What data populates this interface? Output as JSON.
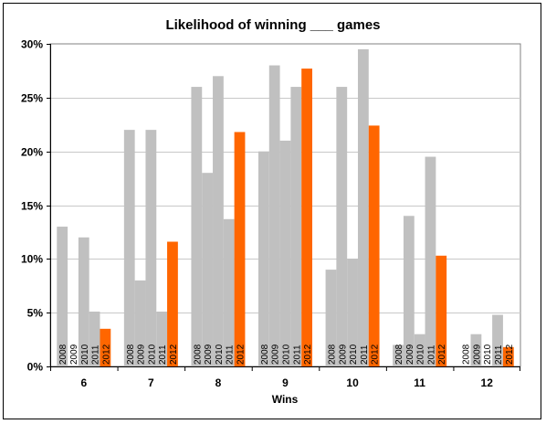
{
  "chart_data": {
    "type": "bar",
    "title": "Likelihood of winning ___ games",
    "xlabel": "Wins",
    "ylabel": "",
    "ylim": [
      0,
      30
    ],
    "yticks": [
      "0%",
      "5%",
      "10%",
      "15%",
      "20%",
      "25%",
      "30%"
    ],
    "categories": [
      "6",
      "7",
      "8",
      "9",
      "10",
      "11",
      "12"
    ],
    "grid": true,
    "legend": "none",
    "colors": {
      "2008": "#c0c0c0",
      "2009": "#c0c0c0",
      "2010": "#c0c0c0",
      "2011": "#c0c0c0",
      "2012": "#ff6600"
    },
    "series": [
      {
        "name": "2008",
        "values": [
          13,
          22,
          26,
          20,
          9,
          2,
          0
        ]
      },
      {
        "name": "2009",
        "values": [
          0,
          8,
          18,
          28,
          26,
          14,
          3
        ]
      },
      {
        "name": "2010",
        "values": [
          12,
          22,
          27,
          21,
          10,
          3,
          0
        ]
      },
      {
        "name": "2011",
        "values": [
          5.1,
          5.1,
          13.7,
          26,
          29.5,
          19.5,
          4.8
        ]
      },
      {
        "name": "2012",
        "values": [
          3.5,
          11.6,
          21.8,
          27.7,
          22.4,
          10.3,
          1.8
        ]
      }
    ]
  }
}
